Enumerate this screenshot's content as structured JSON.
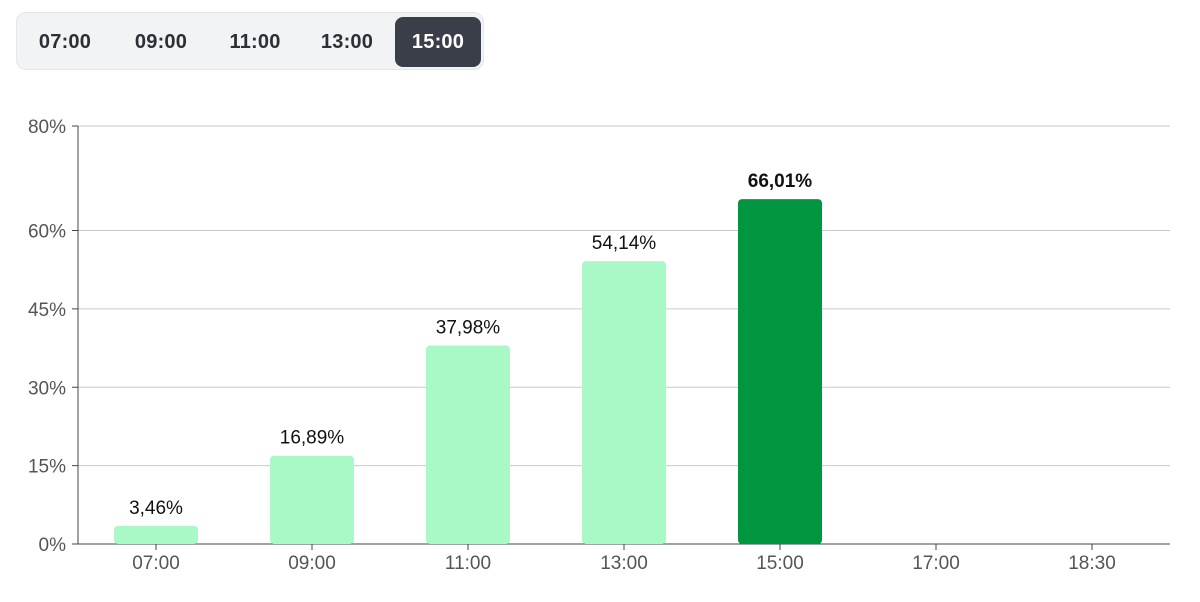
{
  "tabs": [
    {
      "label": "07:00",
      "active": false
    },
    {
      "label": "09:00",
      "active": false
    },
    {
      "label": "11:00",
      "active": false
    },
    {
      "label": "13:00",
      "active": false
    },
    {
      "label": "15:00",
      "active": true
    }
  ],
  "colors": {
    "bar": "#a8f9c6",
    "bar_active": "#009640",
    "grid": "#c9c9c9",
    "axis": "#444444",
    "tick_text": "#555555",
    "value_text": "#111111",
    "tab_active_bg": "#3a3e49"
  },
  "chart_data": {
    "type": "bar",
    "categories": [
      "07:00",
      "09:00",
      "11:00",
      "13:00",
      "15:00",
      "17:00",
      "18:30"
    ],
    "values": [
      3.46,
      16.89,
      37.98,
      54.14,
      66.01,
      null,
      null
    ],
    "value_labels": [
      "3,46%",
      "16,89%",
      "37,98%",
      "54,14%",
      "66,01%",
      "",
      ""
    ],
    "highlight_index": 4,
    "yticks": [
      0,
      15,
      30,
      45,
      60,
      80
    ],
    "ytick_labels": [
      "0%",
      "15%",
      "30%",
      "45%",
      "60%",
      "80%"
    ],
    "ylim": [
      0,
      80
    ],
    "grid": true,
    "title": "",
    "xlabel": "",
    "ylabel": ""
  }
}
